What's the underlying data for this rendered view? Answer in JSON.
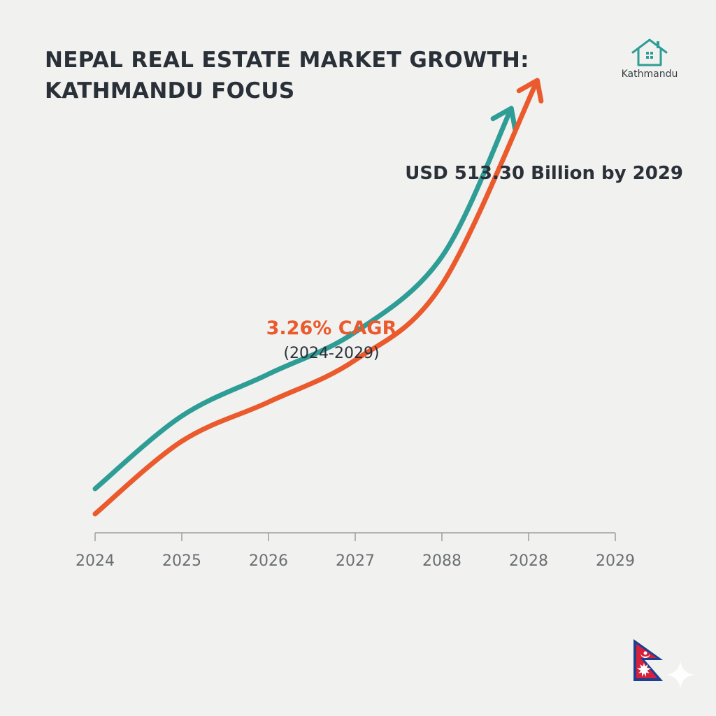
{
  "header": {
    "title_line1": "NEPAL REAL ESTATE MARKET GROWTH:",
    "title_line2": "KATHMANDU FOCUS"
  },
  "brand": {
    "icon": "house-icon",
    "label": "Kathmandu"
  },
  "flag": {
    "icon": "nepal-flag-icon"
  },
  "watermark": {
    "icon": "sparkle-icon"
  },
  "colors": {
    "teal": "#2e9d95",
    "orange": "#ea5a2c",
    "text_dark": "#2a3037",
    "axis": "#6b6f73"
  },
  "chart_data": {
    "type": "line",
    "title": "NEPAL REAL ESTATE MARKET GROWTH: KATHMANDU FOCUS",
    "xlabel": "",
    "ylabel": "",
    "x_tick_labels": [
      "2024",
      "2025",
      "2026",
      "2027",
      "2088",
      "2028",
      "2029"
    ],
    "grid": false,
    "series": [
      {
        "color": "#2e9d95",
        "x": [
          2024,
          2025,
          2026,
          2027,
          2028,
          2028.8
        ],
        "y": [
          0.09,
          0.35,
          0.5,
          0.65,
          0.92,
          1.45
        ],
        "arrow_end": true
      },
      {
        "color": "#ea5a2c",
        "x": [
          2024,
          2025,
          2026,
          2027,
          2028,
          2029.1
        ],
        "y": [
          0.0,
          0.26,
          0.4,
          0.55,
          0.82,
          1.55
        ],
        "arrow_end": true
      }
    ],
    "annotations": {
      "cagr": "3.26% CAGR",
      "cagr_period": "(2024-2029)",
      "target": "USD 513.30 Billion by 2029"
    }
  }
}
